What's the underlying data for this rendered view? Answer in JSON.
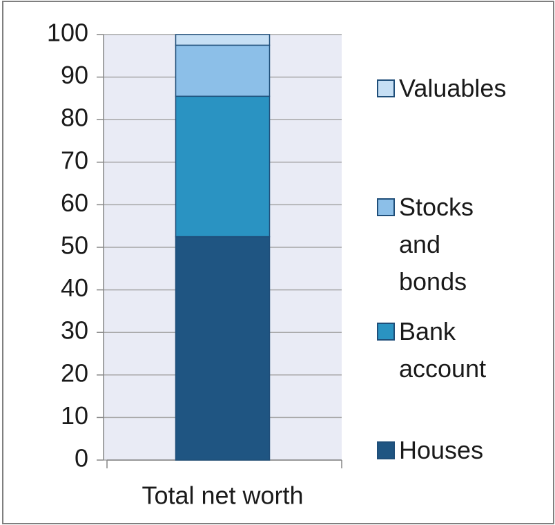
{
  "chart_data": {
    "type": "stacked_bar",
    "categories": [
      "Total net worth"
    ],
    "series": [
      {
        "name": "Houses",
        "color": "#1f5582",
        "values": [
          52.5
        ]
      },
      {
        "name": "Bank account",
        "color": "#2a93c2",
        "values": [
          33
        ]
      },
      {
        "name": "Stocks and bonds",
        "color": "#8cbfe8",
        "values": [
          12
        ]
      },
      {
        "name": "Valuables",
        "color": "#c6dff4",
        "values": [
          2.5
        ]
      }
    ],
    "ylim": [
      0,
      100
    ],
    "yticks": [
      0,
      10,
      20,
      30,
      40,
      50,
      60,
      70,
      80,
      90,
      100
    ],
    "grid": true,
    "legend": "right"
  }
}
